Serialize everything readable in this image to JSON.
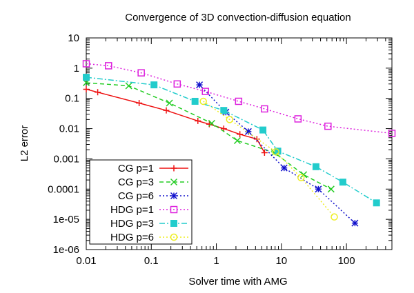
{
  "chart_data": {
    "type": "line",
    "title": "Convergence of 3D convection-diffusion equation",
    "xlabel": "Solver time with AMG",
    "ylabel": "L2 error",
    "xscale": "log",
    "yscale": "log",
    "xlim": [
      0.01,
      500
    ],
    "ylim": [
      1e-06,
      10
    ],
    "xticks": [
      {
        "value": 0.01,
        "label": "0.01"
      },
      {
        "value": 0.1,
        "label": "0.1"
      },
      {
        "value": 1,
        "label": "1"
      },
      {
        "value": 10,
        "label": "10"
      },
      {
        "value": 100,
        "label": "100"
      }
    ],
    "yticks": [
      {
        "value": 10,
        "label": "10"
      },
      {
        "value": 1,
        "label": "1"
      },
      {
        "value": 0.1,
        "label": "0.1"
      },
      {
        "value": 0.01,
        "label": "0.01"
      },
      {
        "value": 0.001,
        "label": "0.001"
      },
      {
        "value": 0.0001,
        "label": "0.0001"
      },
      {
        "value": 1e-05,
        "label": "1e-05"
      },
      {
        "value": 1e-06,
        "label": "1e-06"
      }
    ],
    "grid": false,
    "legend_position": "bottom-left",
    "series": [
      {
        "name": "CG p=1",
        "color": "#ee1111",
        "dash": "",
        "marker": "plus",
        "points": [
          [
            0.01,
            0.2
          ],
          [
            0.015,
            0.16
          ],
          [
            0.065,
            0.07
          ],
          [
            0.17,
            0.04
          ],
          [
            0.52,
            0.018
          ],
          [
            0.78,
            0.014
          ],
          [
            1.3,
            0.01
          ],
          [
            2.3,
            0.0065
          ],
          [
            4.2,
            0.0045
          ],
          [
            5.5,
            0.0016
          ]
        ]
      },
      {
        "name": "CG p=3",
        "color": "#22cc22",
        "dash": "6,4",
        "marker": "x",
        "points": [
          [
            0.01,
            0.33
          ],
          [
            0.045,
            0.26
          ],
          [
            0.19,
            0.07
          ],
          [
            0.85,
            0.015
          ],
          [
            2.1,
            0.004
          ],
          [
            7.8,
            0.0016
          ],
          [
            22,
            0.0003
          ],
          [
            58,
            0.0001
          ]
        ]
      },
      {
        "name": "CG p=6",
        "color": "#1111cc",
        "dash": "2,3",
        "marker": "star",
        "points": [
          [
            0.55,
            0.28
          ],
          [
            1.4,
            0.035
          ],
          [
            3.1,
            0.008
          ],
          [
            11,
            0.0005
          ],
          [
            37,
            0.0001
          ],
          [
            135,
            7.5e-06
          ]
        ]
      },
      {
        "name": "HDG p=1",
        "color": "#dd22dd",
        "dash": "2,3",
        "marker": "square",
        "points": [
          [
            0.01,
            1.4
          ],
          [
            0.022,
            1.2
          ],
          [
            0.07,
            0.7
          ],
          [
            0.25,
            0.3
          ],
          [
            0.68,
            0.17
          ],
          [
            2.2,
            0.08
          ],
          [
            5.5,
            0.045
          ],
          [
            18,
            0.021
          ],
          [
            52,
            0.012
          ],
          [
            500,
            0.007
          ]
        ]
      },
      {
        "name": "HDG p=3",
        "color": "#22cccc",
        "dash": "8,3,2,3",
        "marker": "filled-square",
        "points": [
          [
            0.01,
            0.5
          ],
          [
            0.11,
            0.28
          ],
          [
            0.47,
            0.08
          ],
          [
            1.3,
            0.04
          ],
          [
            5.2,
            0.009
          ],
          [
            8.8,
            0.0018
          ],
          [
            34,
            0.00055
          ],
          [
            88,
            0.00017
          ],
          [
            290,
            3.5e-05
          ]
        ]
      },
      {
        "name": "HDG p=6",
        "color": "#eeee22",
        "dash": "2,3",
        "marker": "circle",
        "points": [
          [
            0.63,
            0.08
          ],
          [
            1.6,
            0.02
          ],
          [
            8.2,
            0.0017
          ],
          [
            20,
            0.00024
          ],
          [
            65,
            1.2e-05
          ]
        ]
      }
    ]
  }
}
